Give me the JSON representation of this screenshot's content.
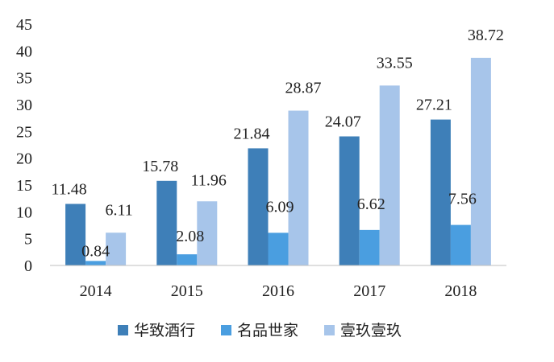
{
  "chart_data": {
    "type": "bar",
    "title": "",
    "xlabel": "",
    "ylabel": "",
    "ylim": [
      0,
      45
    ],
    "yticks": [
      0,
      5,
      10,
      15,
      20,
      25,
      30,
      35,
      40,
      45
    ],
    "grid": false,
    "legend_position": "bottom",
    "categories": [
      "2014",
      "2015",
      "2016",
      "2017",
      "2018"
    ],
    "series": [
      {
        "name": "华致酒行",
        "color": "#3e7fb8",
        "values": [
          11.48,
          15.78,
          21.84,
          24.07,
          27.21
        ],
        "labels": [
          "11.48",
          "15.78",
          "21.84",
          "24.07",
          "27.21"
        ]
      },
      {
        "name": "名品世家",
        "color": "#4a9ee0",
        "values": [
          0.84,
          2.08,
          6.09,
          6.62,
          7.56
        ],
        "labels": [
          "0.84",
          "2.08",
          "6.09",
          "6.62",
          "7.56"
        ]
      },
      {
        "name": "壹玖壹玖",
        "color": "#a7c5ea",
        "values": [
          6.11,
          11.96,
          28.87,
          33.55,
          38.72
        ],
        "labels": [
          "6.11",
          "11.96",
          "28.87",
          "33.55",
          "38.72"
        ]
      }
    ]
  }
}
